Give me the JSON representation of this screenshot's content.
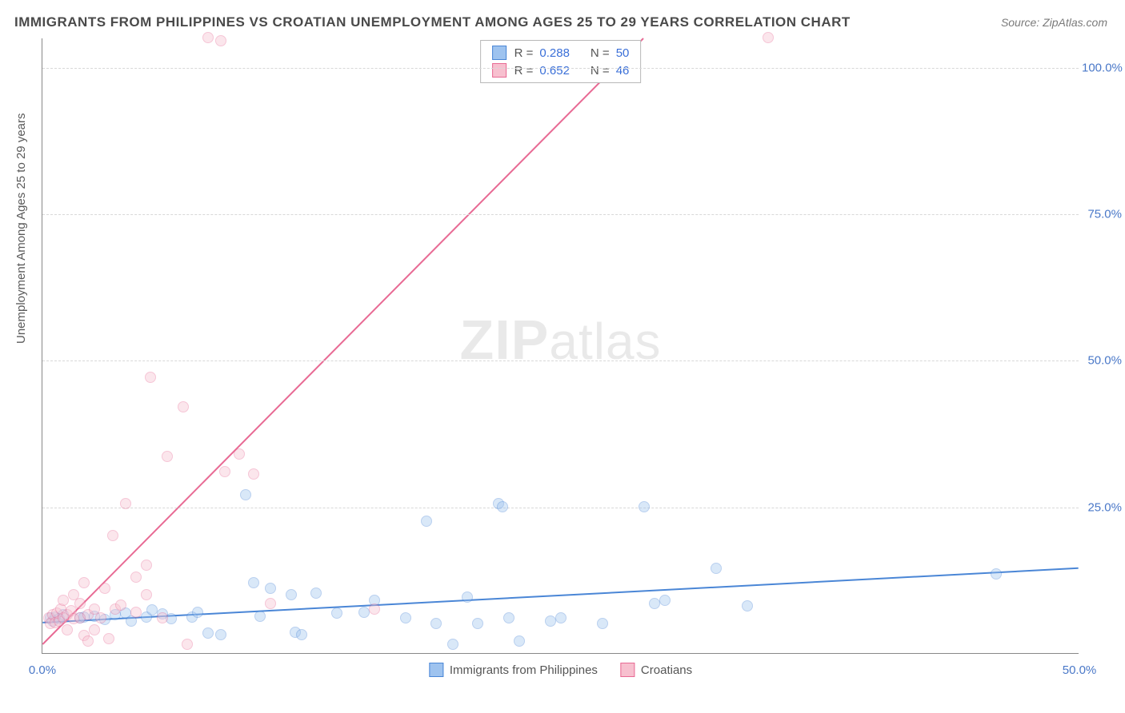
{
  "title": "IMMIGRANTS FROM PHILIPPINES VS CROATIAN UNEMPLOYMENT AMONG AGES 25 TO 29 YEARS CORRELATION CHART",
  "source_label": "Source:",
  "source_value": "ZipAtlas.com",
  "yaxis_title": "Unemployment Among Ages 25 to 29 years",
  "watermark": "ZIPatlas",
  "chart": {
    "type": "scatter",
    "xlim": [
      0,
      50
    ],
    "ylim": [
      0,
      105
    ],
    "xticks": [
      {
        "v": 0,
        "label": "0.0%"
      },
      {
        "v": 50,
        "label": "50.0%"
      }
    ],
    "yticks": [
      {
        "v": 25,
        "label": "25.0%"
      },
      {
        "v": 50,
        "label": "50.0%"
      },
      {
        "v": 75,
        "label": "75.0%"
      },
      {
        "v": 100,
        "label": "100.0%"
      }
    ],
    "background_color": "#ffffff",
    "grid_color": "#d8d8d8",
    "marker_radius": 7,
    "marker_opacity": 0.38,
    "marker_border_opacity": 0.9,
    "series": [
      {
        "id": "philippines",
        "label": "Immigrants from Philippines",
        "color_fill": "#9ec3ef",
        "color_stroke": "#4a86d6",
        "R": "0.288",
        "N": "50",
        "trend": {
          "x1": 0,
          "y1": 5.2,
          "x2": 50,
          "y2": 14.5,
          "width": 2
        },
        "points": [
          [
            0.4,
            6.0
          ],
          [
            0.5,
            5.5
          ],
          [
            0.6,
            6.2
          ],
          [
            0.8,
            5.8
          ],
          [
            1.0,
            6.6
          ],
          [
            1.8,
            6.0
          ],
          [
            2.0,
            6.1
          ],
          [
            2.5,
            6.3
          ],
          [
            3.0,
            5.7
          ],
          [
            3.5,
            6.5
          ],
          [
            4.0,
            6.8
          ],
          [
            4.3,
            5.4
          ],
          [
            5.0,
            6.2
          ],
          [
            5.3,
            7.4
          ],
          [
            5.8,
            6.7
          ],
          [
            6.2,
            5.9
          ],
          [
            7.2,
            6.1
          ],
          [
            7.5,
            7.0
          ],
          [
            8.0,
            3.4
          ],
          [
            8.6,
            3.2
          ],
          [
            9.8,
            27.0
          ],
          [
            10.2,
            12.0
          ],
          [
            10.5,
            6.3
          ],
          [
            11.0,
            11.0
          ],
          [
            12.0,
            10.0
          ],
          [
            12.2,
            3.5
          ],
          [
            12.5,
            3.2
          ],
          [
            13.2,
            10.2
          ],
          [
            14.2,
            6.8
          ],
          [
            15.5,
            7.0
          ],
          [
            16.0,
            9.0
          ],
          [
            17.5,
            6.0
          ],
          [
            18.5,
            22.5
          ],
          [
            19.0,
            5.0
          ],
          [
            19.8,
            1.5
          ],
          [
            20.5,
            9.5
          ],
          [
            21.0,
            5.0
          ],
          [
            22.0,
            25.5
          ],
          [
            22.2,
            25.0
          ],
          [
            22.5,
            6.0
          ],
          [
            23.0,
            2.0
          ],
          [
            24.5,
            5.5
          ],
          [
            25.0,
            6.0
          ],
          [
            27.0,
            5.0
          ],
          [
            29.0,
            25.0
          ],
          [
            29.5,
            8.5
          ],
          [
            30.0,
            9.0
          ],
          [
            32.5,
            14.5
          ],
          [
            34.0,
            8.0
          ],
          [
            46.0,
            13.5
          ]
        ]
      },
      {
        "id": "croatians",
        "label": "Croatians",
        "color_fill": "#f7c0cf",
        "color_stroke": "#e86a94",
        "R": "0.652",
        "N": "46",
        "trend": {
          "x1": 0,
          "y1": 1.5,
          "x2": 29,
          "y2": 105,
          "width": 2
        },
        "points": [
          [
            0.3,
            6.0
          ],
          [
            0.4,
            5.0
          ],
          [
            0.5,
            6.5
          ],
          [
            0.6,
            5.2
          ],
          [
            0.7,
            6.8
          ],
          [
            0.8,
            5.5
          ],
          [
            0.9,
            7.5
          ],
          [
            1.0,
            6.0
          ],
          [
            1.0,
            9.0
          ],
          [
            1.2,
            6.5
          ],
          [
            1.2,
            4.0
          ],
          [
            1.4,
            7.2
          ],
          [
            1.5,
            5.8
          ],
          [
            1.5,
            10.0
          ],
          [
            1.8,
            6.0
          ],
          [
            1.8,
            8.5
          ],
          [
            2.0,
            3.0
          ],
          [
            2.0,
            12.0
          ],
          [
            2.2,
            6.5
          ],
          [
            2.2,
            2.0
          ],
          [
            2.5,
            7.5
          ],
          [
            2.5,
            4.0
          ],
          [
            2.8,
            6.0
          ],
          [
            3.0,
            11.0
          ],
          [
            3.2,
            2.5
          ],
          [
            3.4,
            20.0
          ],
          [
            3.5,
            7.5
          ],
          [
            3.8,
            8.2
          ],
          [
            4.0,
            25.5
          ],
          [
            4.5,
            13.0
          ],
          [
            4.5,
            7.0
          ],
          [
            5.0,
            10.0
          ],
          [
            5.0,
            15.0
          ],
          [
            5.2,
            47.0
          ],
          [
            5.8,
            6.0
          ],
          [
            6.0,
            33.5
          ],
          [
            6.8,
            42.0
          ],
          [
            7.0,
            1.5
          ],
          [
            8.0,
            105.0
          ],
          [
            8.6,
            104.5
          ],
          [
            8.8,
            31.0
          ],
          [
            9.5,
            34.0
          ],
          [
            10.2,
            30.5
          ],
          [
            11.0,
            8.5
          ],
          [
            16.0,
            7.5
          ],
          [
            35.0,
            105.0
          ]
        ]
      }
    ]
  },
  "legend_top": {
    "R_label": "R =",
    "N_label": "N ="
  },
  "legend_bottom_order": [
    "philippines",
    "croatians"
  ],
  "colors": {
    "title": "#4a4a4a",
    "axis_text": "#4a78c8",
    "source": "#7a7a7a"
  }
}
